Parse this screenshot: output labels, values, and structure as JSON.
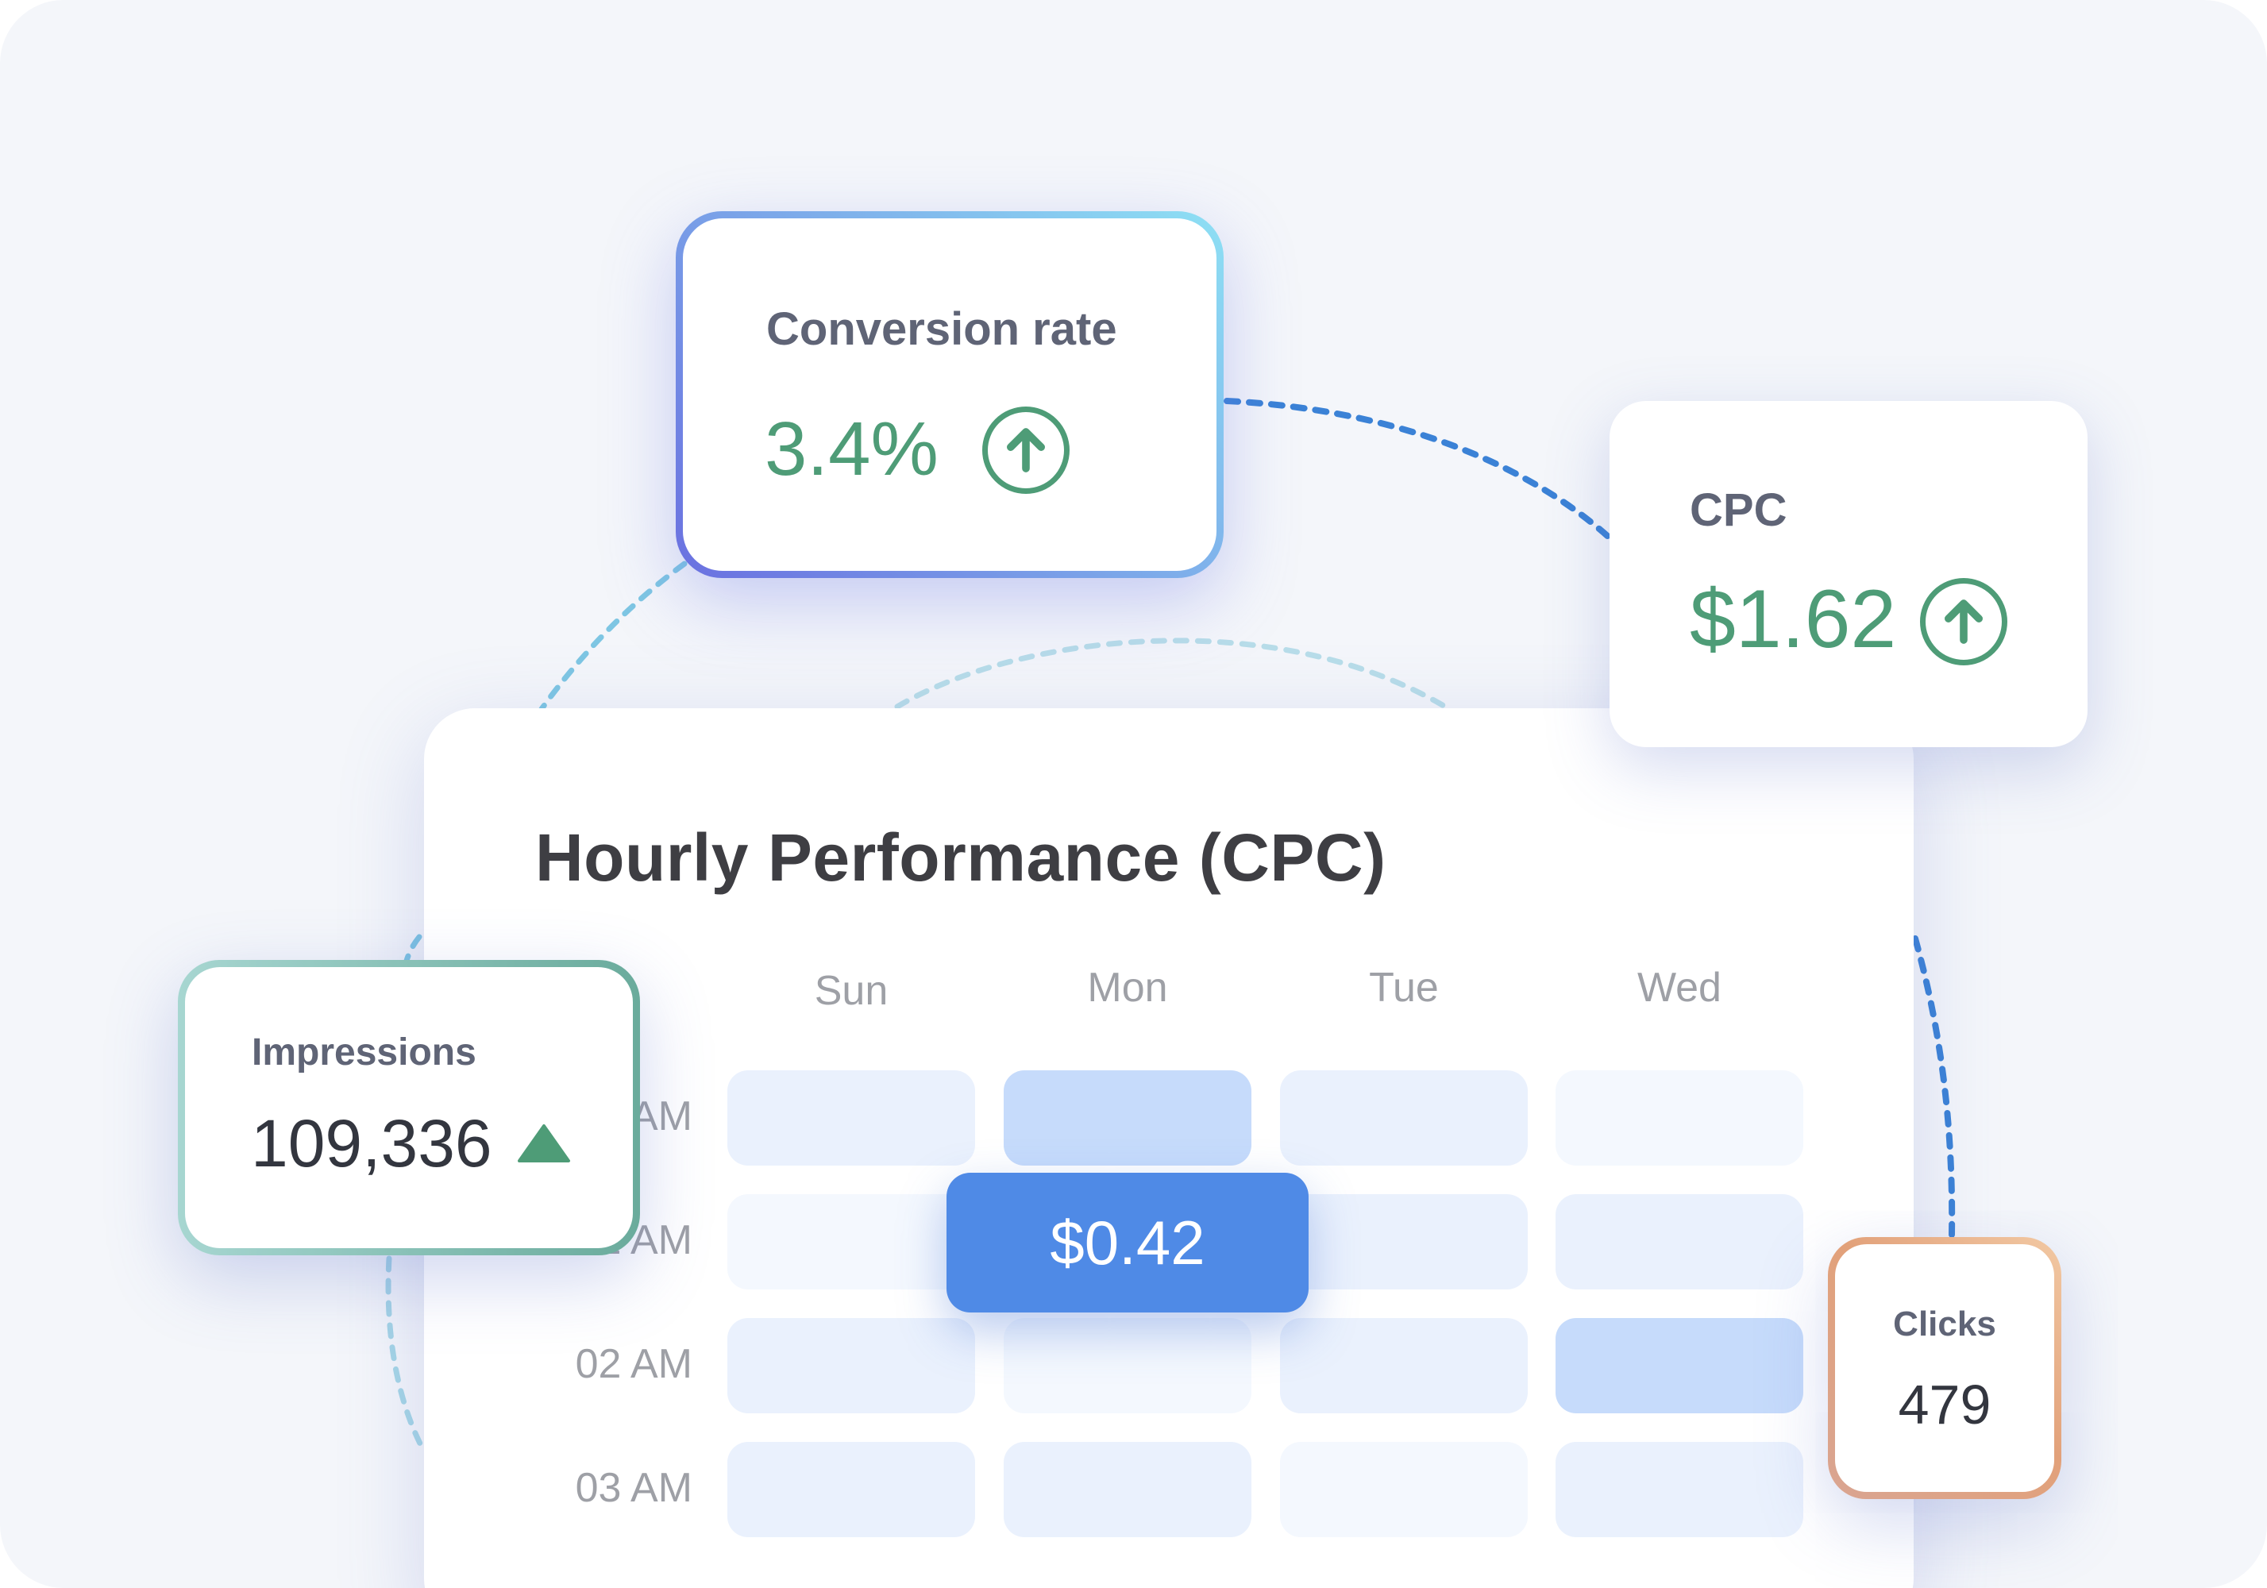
{
  "colors": {
    "background": "#f4f6fa",
    "positive": "#4e9c77",
    "accent": "#4f8ae6",
    "cell_light": "#eaf1fd",
    "cell_faint": "#f4f8fe",
    "cell_medium": "#c6dbfb"
  },
  "cards": {
    "conversion": {
      "label": "Conversion rate",
      "value": "3.4%",
      "trend_icon": "arrow-up-circle-icon"
    },
    "cpc": {
      "label": "CPC",
      "value": "$1.62",
      "trend_icon": "arrow-up-circle-icon"
    },
    "impressions": {
      "label": "Impressions",
      "value": "109,336",
      "trend_icon": "triangle-up-icon"
    },
    "clicks": {
      "label": "Clicks",
      "value": "479"
    }
  },
  "heatmap": {
    "title": "Hourly Performance (CPC)",
    "days": [
      "Sun",
      "Mon",
      "Tue",
      "Wed"
    ],
    "hours": [
      "00 AM",
      "01 AM",
      "02 AM",
      "03 AM"
    ],
    "tooltip": "$0.42"
  }
}
